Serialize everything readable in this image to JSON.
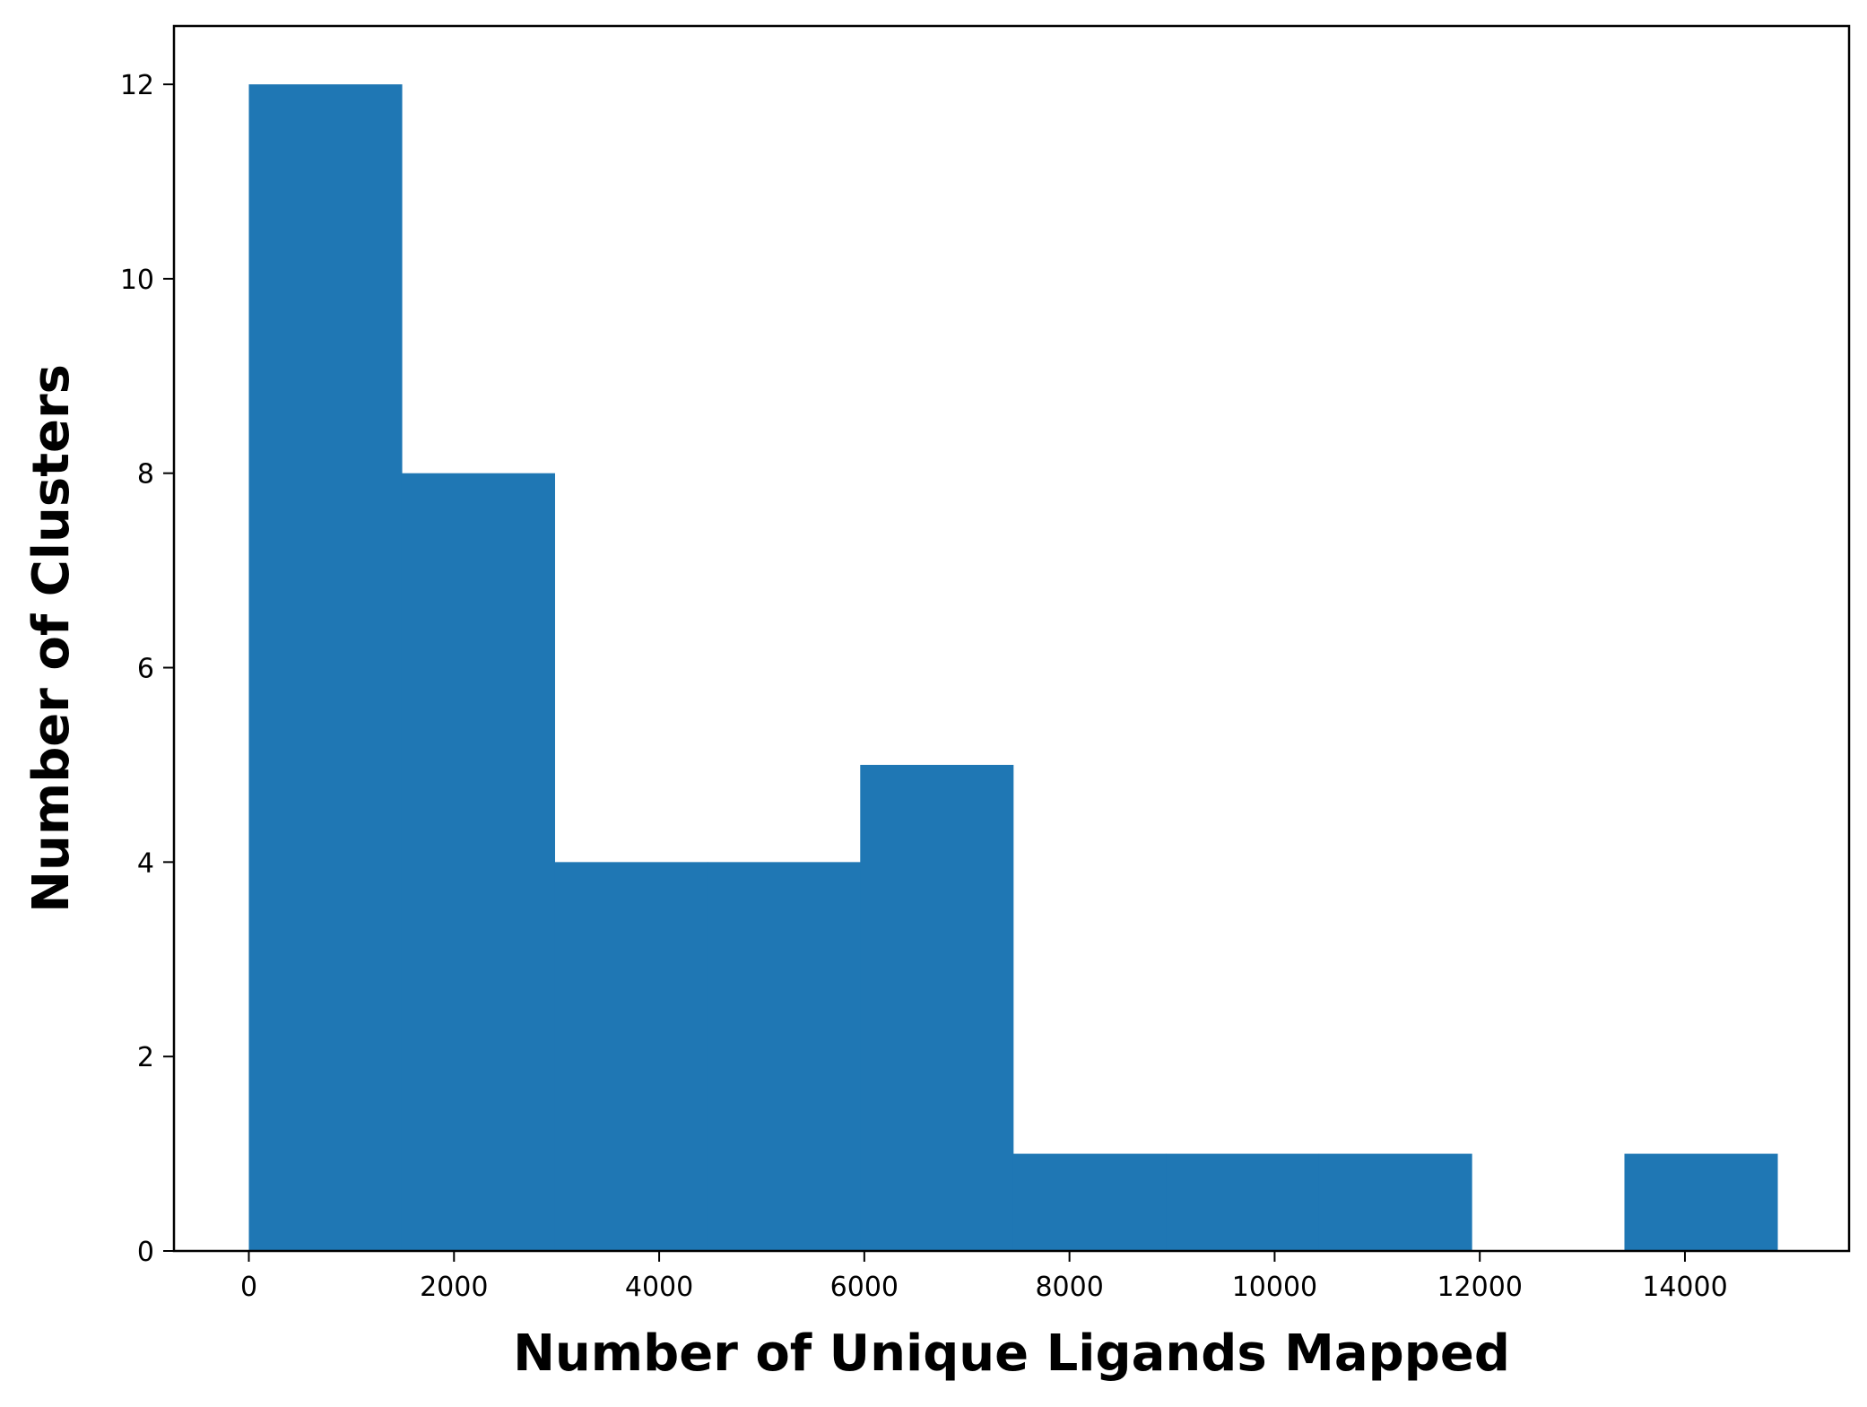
{
  "chart_data": {
    "type": "bar",
    "subtype": "histogram",
    "title": "",
    "xlabel": "Number of Unique Ligands Mapped",
    "ylabel": "Number of Clusters",
    "xlim": [
      -730,
      15600
    ],
    "ylim": [
      0,
      12.6
    ],
    "xticks": [
      0,
      2000,
      4000,
      6000,
      8000,
      10000,
      12000,
      14000
    ],
    "yticks": [
      0,
      2,
      4,
      6,
      8,
      10,
      12
    ],
    "bin_edges": [
      0,
      1490,
      2980,
      4470,
      5960,
      7450,
      8940,
      10430,
      11920,
      13410,
      14900
    ],
    "values": [
      12,
      8,
      4,
      4,
      5,
      1,
      1,
      1,
      0,
      1
    ],
    "bar_color": "#1f77b4",
    "grid": false,
    "legend": "none"
  }
}
